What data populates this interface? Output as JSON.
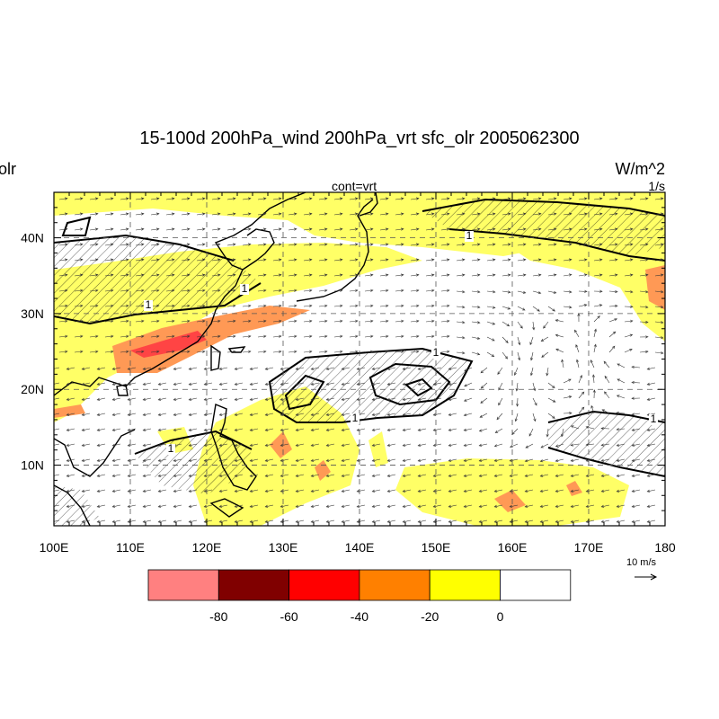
{
  "title": "15-100d 200hPa_wind 200hPa_vrt sfc_olr 2005062300",
  "left_label": "olr",
  "right_unit": "W/m^2",
  "right_sub": "1/s",
  "contour_label": "cont=vrt",
  "contour_value_label": "1",
  "map": {
    "lon_range": [
      100,
      180
    ],
    "lat_range": [
      2,
      46
    ],
    "lon_ticks": [
      "100E",
      "110E",
      "120E",
      "130E",
      "140E",
      "150E",
      "160E",
      "170E",
      "180"
    ],
    "lat_ticks": [
      "10N",
      "20N",
      "30N",
      "40N"
    ]
  },
  "reference_vector": {
    "label": "10 m/s"
  },
  "colorbar": {
    "colors": [
      "#ff8080",
      "#800000",
      "#ff0000",
      "#ff8000",
      "#ffff00",
      "#ffffff"
    ],
    "labels": [
      "-80",
      "-60",
      "-40",
      "-20",
      "0"
    ]
  },
  "colors": {
    "olr_yellow": "#ffff66",
    "olr_orange": "#ff9955",
    "olr_red": "#ff4444"
  }
}
